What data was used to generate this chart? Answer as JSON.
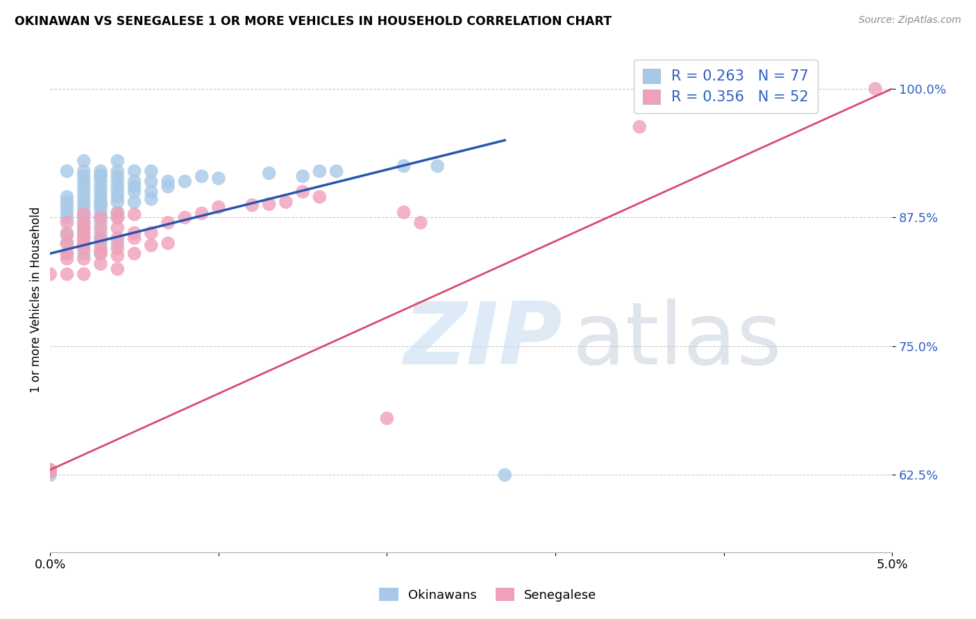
{
  "title": "OKINAWAN VS SENEGALESE 1 OR MORE VEHICLES IN HOUSEHOLD CORRELATION CHART",
  "source": "Source: ZipAtlas.com",
  "ylabel": "1 or more Vehicles in Household",
  "xlim": [
    0.0,
    0.05
  ],
  "ylim": [
    0.55,
    1.04
  ],
  "yticks": [
    0.625,
    0.75,
    0.875,
    1.0
  ],
  "ytick_labels": [
    "62.5%",
    "75.0%",
    "87.5%",
    "100.0%"
  ],
  "xticks": [
    0.0,
    0.01,
    0.02,
    0.03,
    0.04,
    0.05
  ],
  "xtick_labels": [
    "0.0%",
    "",
    "",
    "",
    "",
    "5.0%"
  ],
  "background_color": "#ffffff",
  "grid_color": "#c8c8c8",
  "okinawan_color": "#a8c8e8",
  "senegalese_color": "#f0a0b8",
  "okinawan_line_color": "#2855b0",
  "senegalese_line_color": "#d84870",
  "legend_R_okinawan": "R = 0.263",
  "legend_N_okinawan": "N = 77",
  "legend_R_senegalese": "R = 0.356",
  "legend_N_senegalese": "N = 52",
  "ok_line_x": [
    0.0,
    0.027
  ],
  "ok_line_y": [
    0.84,
    0.95
  ],
  "sen_line_x": [
    0.0,
    0.05
  ],
  "sen_line_y": [
    0.63,
    1.0
  ],
  "okinawan_x": [
    0.0,
    0.0,
    0.001,
    0.001,
    0.001,
    0.001,
    0.001,
    0.001,
    0.001,
    0.001,
    0.001,
    0.002,
    0.002,
    0.002,
    0.002,
    0.002,
    0.002,
    0.002,
    0.002,
    0.002,
    0.002,
    0.002,
    0.002,
    0.002,
    0.002,
    0.002,
    0.002,
    0.002,
    0.003,
    0.003,
    0.003,
    0.003,
    0.003,
    0.003,
    0.003,
    0.003,
    0.003,
    0.003,
    0.003,
    0.003,
    0.003,
    0.003,
    0.003,
    0.003,
    0.003,
    0.004,
    0.004,
    0.004,
    0.004,
    0.004,
    0.004,
    0.004,
    0.004,
    0.004,
    0.004,
    0.004,
    0.005,
    0.005,
    0.005,
    0.005,
    0.005,
    0.006,
    0.006,
    0.006,
    0.006,
    0.007,
    0.007,
    0.008,
    0.009,
    0.01,
    0.013,
    0.015,
    0.016,
    0.017,
    0.021,
    0.023,
    0.027
  ],
  "okinawan_y": [
    0.63,
    0.625,
    0.84,
    0.85,
    0.86,
    0.875,
    0.88,
    0.885,
    0.89,
    0.895,
    0.92,
    0.84,
    0.85,
    0.855,
    0.86,
    0.865,
    0.87,
    0.875,
    0.88,
    0.885,
    0.89,
    0.895,
    0.9,
    0.905,
    0.91,
    0.915,
    0.92,
    0.93,
    0.84,
    0.85,
    0.855,
    0.86,
    0.87,
    0.875,
    0.88,
    0.885,
    0.888,
    0.89,
    0.895,
    0.9,
    0.905,
    0.91,
    0.915,
    0.916,
    0.92,
    0.85,
    0.875,
    0.88,
    0.89,
    0.895,
    0.9,
    0.905,
    0.91,
    0.915,
    0.92,
    0.93,
    0.89,
    0.9,
    0.905,
    0.91,
    0.92,
    0.893,
    0.9,
    0.91,
    0.92,
    0.905,
    0.91,
    0.91,
    0.915,
    0.913,
    0.918,
    0.915,
    0.92,
    0.92,
    0.925,
    0.925,
    0.625
  ],
  "senegalese_x": [
    0.0,
    0.0,
    0.0,
    0.001,
    0.001,
    0.001,
    0.001,
    0.001,
    0.001,
    0.002,
    0.002,
    0.002,
    0.002,
    0.002,
    0.002,
    0.002,
    0.002,
    0.002,
    0.003,
    0.003,
    0.003,
    0.003,
    0.003,
    0.003,
    0.004,
    0.004,
    0.004,
    0.004,
    0.004,
    0.004,
    0.004,
    0.005,
    0.005,
    0.005,
    0.005,
    0.006,
    0.006,
    0.007,
    0.007,
    0.008,
    0.009,
    0.01,
    0.012,
    0.013,
    0.014,
    0.015,
    0.016,
    0.02,
    0.021,
    0.022,
    0.035,
    0.049
  ],
  "senegalese_y": [
    0.628,
    0.63,
    0.82,
    0.82,
    0.835,
    0.84,
    0.85,
    0.858,
    0.87,
    0.82,
    0.835,
    0.845,
    0.85,
    0.855,
    0.86,
    0.865,
    0.87,
    0.878,
    0.83,
    0.84,
    0.845,
    0.855,
    0.865,
    0.875,
    0.825,
    0.838,
    0.845,
    0.855,
    0.865,
    0.875,
    0.879,
    0.84,
    0.855,
    0.86,
    0.878,
    0.848,
    0.86,
    0.85,
    0.87,
    0.875,
    0.879,
    0.885,
    0.887,
    0.888,
    0.89,
    0.9,
    0.895,
    0.68,
    0.88,
    0.87,
    0.963,
    1.0
  ]
}
